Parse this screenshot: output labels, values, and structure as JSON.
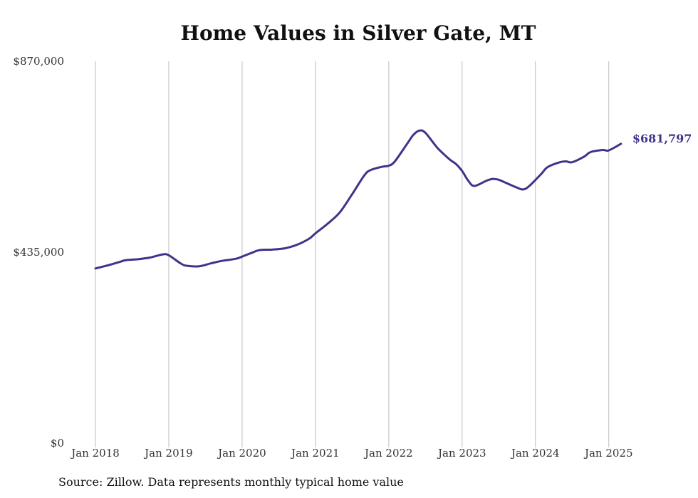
{
  "page": {
    "title": "Home Values in Silver Gate, MT",
    "source": "Source: Zillow. Data represents monthly typical home value"
  },
  "chart_data": {
    "type": "line",
    "title": "Home Values in Silver Gate, MT",
    "xlabel": "",
    "ylabel": "",
    "ylim": [
      0,
      870000
    ],
    "yticks": [
      0,
      435000,
      870000
    ],
    "ytick_labels": [
      "$0",
      "$435,000",
      "$870,000"
    ],
    "xticks": [
      "2018-01",
      "2019-01",
      "2020-01",
      "2021-01",
      "2022-01",
      "2023-01",
      "2024-01",
      "2025-01"
    ],
    "xtick_labels": [
      "Jan 2018",
      "Jan 2019",
      "Jan 2020",
      "Jan 2021",
      "Jan 2022",
      "Jan 2023",
      "Jan 2024",
      "Jan 2025"
    ],
    "grid": "vertical",
    "line_color": "#3d348b",
    "end_label": "$681,797",
    "series": [
      {
        "x": [
          "2018-01",
          "2018-03",
          "2018-05",
          "2018-06",
          "2018-08",
          "2018-10",
          "2018-12",
          "2019-01",
          "2019-03",
          "2019-04",
          "2019-06",
          "2019-08",
          "2019-10",
          "2019-12",
          "2020-01",
          "2020-03",
          "2020-04",
          "2020-06",
          "2020-08",
          "2020-10",
          "2020-12",
          "2021-01",
          "2021-03",
          "2021-05",
          "2021-07",
          "2021-09",
          "2021-10",
          "2021-12",
          "2022-01",
          "2022-02",
          "2022-04",
          "2022-05",
          "2022-06",
          "2022-07",
          "2022-09",
          "2022-11",
          "2022-12",
          "2023-01",
          "2023-02",
          "2023-03",
          "2023-05",
          "2023-06",
          "2023-07",
          "2023-08",
          "2023-10",
          "2023-11",
          "2023-12",
          "2024-02",
          "2024-03",
          "2024-05",
          "2024-06",
          "2024-07",
          "2024-09",
          "2024-10",
          "2024-12",
          "2025-01",
          "2025-03"
        ],
        "values": [
          398000,
          405000,
          413000,
          417000,
          419000,
          423000,
          430000,
          428000,
          409000,
          404000,
          403000,
          410000,
          416000,
          420000,
          425000,
          436000,
          440000,
          441000,
          444000,
          452000,
          466000,
          478000,
          500000,
          526000,
          567000,
          610000,
          622000,
          630000,
          632000,
          642000,
          682000,
          702000,
          712000,
          707000,
          672000,
          646000,
          636000,
          620000,
          598000,
          586000,
          598000,
          602000,
          600000,
          594000,
          582000,
          578000,
          586000,
          614000,
          629000,
          640000,
          642000,
          640000,
          653000,
          663000,
          668000,
          667000,
          682000
        ]
      }
    ]
  }
}
